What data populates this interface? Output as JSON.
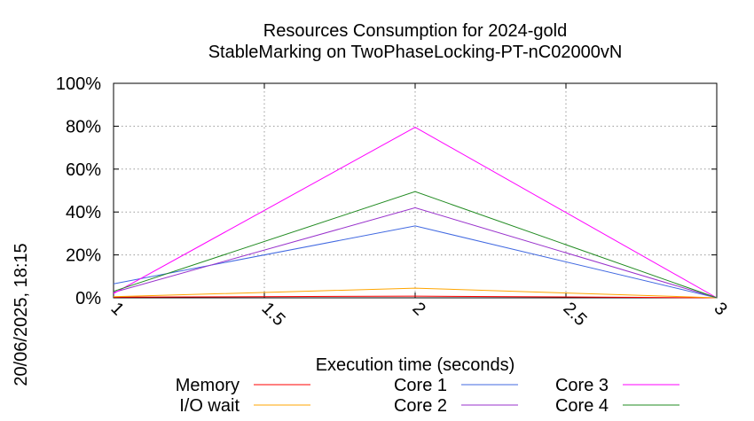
{
  "chart_data": {
    "type": "line",
    "title_line1": "Resources Consumption for 2024-gold",
    "title_line2": "StableMarking on TwoPhaseLocking-PT-nC02000vN",
    "xlabel": "Execution time (seconds)",
    "timestamp": "20/06/2025, 18:15",
    "xlim": [
      1,
      3
    ],
    "ylim": [
      0,
      100
    ],
    "x_ticks": [
      "1",
      "1.5",
      "2",
      "2.5",
      "3"
    ],
    "y_ticks": [
      "0%",
      "20%",
      "40%",
      "60%",
      "80%",
      "100%"
    ],
    "grid": true,
    "legend_position": "bottom",
    "x": [
      1,
      2,
      3
    ],
    "series": [
      {
        "name": "Memory",
        "color": "#ff0000",
        "values": [
          0.3,
          0.8,
          0
        ]
      },
      {
        "name": "I/O wait",
        "color": "#ffa500",
        "values": [
          0.5,
          4.5,
          0
        ]
      },
      {
        "name": "Core 1",
        "color": "#4169e1",
        "values": [
          6.5,
          33.5,
          0
        ]
      },
      {
        "name": "Core 2",
        "color": "#9932cc",
        "values": [
          2.5,
          42,
          0
        ]
      },
      {
        "name": "Core 3",
        "color": "#ff00ff",
        "values": [
          2,
          79.5,
          0
        ]
      },
      {
        "name": "Core 4",
        "color": "#228b22",
        "values": [
          3,
          49.5,
          0
        ]
      }
    ]
  }
}
